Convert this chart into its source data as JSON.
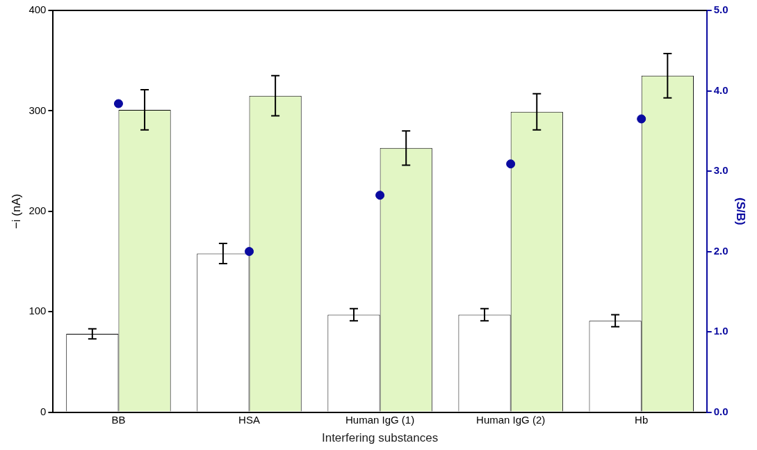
{
  "chart_data": {
    "type": "bar",
    "xlabel": "Interfering substances",
    "ylabel": "−i (nA)",
    "y2label": "(S/B)",
    "categories": [
      "BB",
      "HSA",
      "Human IgG (1)",
      "Human IgG (2)",
      "Hb"
    ],
    "series": [
      {
        "color": "#ffffff",
        "values": [
          78,
          158,
          97,
          97,
          91
        ],
        "errors": [
          5,
          10,
          6,
          6,
          6
        ]
      },
      {
        "color": "#e2f6c4",
        "values": [
          301,
          315,
          263,
          299,
          335
        ],
        "errors": [
          20,
          20,
          17,
          18,
          22
        ]
      },
      {
        "type": "scatter",
        "axis": "y2",
        "color": "#0a0aa0",
        "marker": "circle",
        "values": [
          3.84,
          2.0,
          2.7,
          3.09,
          3.65
        ]
      }
    ],
    "ylim": [
      0,
      400
    ],
    "yticks": [
      0,
      100,
      200,
      300,
      400
    ],
    "y2lim": [
      0,
      5
    ],
    "y2ticks": [
      {
        "value": 0,
        "label": "0.0"
      },
      {
        "value": 1,
        "label": "1.0"
      },
      {
        "value": 2,
        "label": "2.0"
      },
      {
        "value": 3,
        "label": "3.0"
      },
      {
        "value": 4,
        "label": "4.0"
      },
      {
        "value": 5,
        "label": "5.0"
      }
    ],
    "grid": false,
    "legend": false
  }
}
